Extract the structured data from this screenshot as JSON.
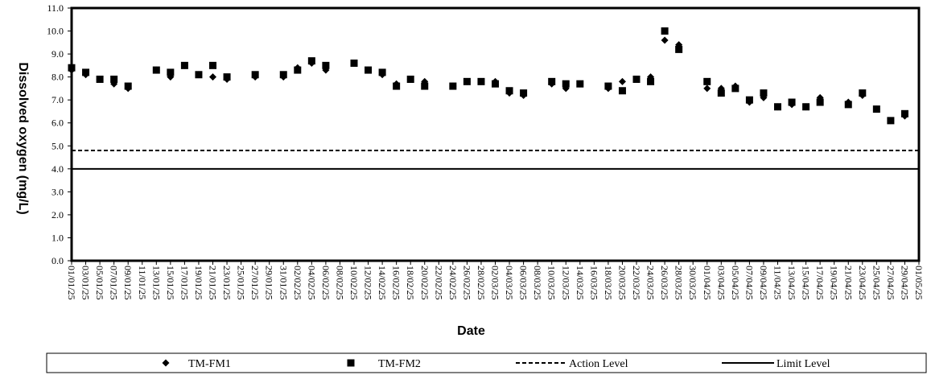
{
  "chart_data": {
    "type": "scatter",
    "xlabel": "Date",
    "ylabel": "Dissolved oxygen (mg/L)",
    "ylim": [
      0,
      11
    ],
    "yticks": [
      "0.0",
      "1.0",
      "2.0",
      "3.0",
      "4.0",
      "5.0",
      "6.0",
      "7.0",
      "8.0",
      "9.0",
      "10.0",
      "11.0"
    ],
    "xlim": [
      "2025-01-01",
      "2025-05-01"
    ],
    "xticks": [
      "01/01/25",
      "03/01/25",
      "05/01/25",
      "07/01/25",
      "09/01/25",
      "11/01/25",
      "13/01/25",
      "15/01/25",
      "17/01/25",
      "19/01/25",
      "21/01/25",
      "23/01/25",
      "25/01/25",
      "27/01/25",
      "29/01/25",
      "31/01/25",
      "02/02/25",
      "04/02/25",
      "06/02/25",
      "08/02/25",
      "10/02/25",
      "12/02/25",
      "14/02/25",
      "16/02/25",
      "18/02/25",
      "20/02/25",
      "22/02/25",
      "24/02/25",
      "26/02/25",
      "28/02/25",
      "02/03/25",
      "04/03/25",
      "06/03/25",
      "08/03/25",
      "10/03/25",
      "12/03/25",
      "14/03/25",
      "16/03/25",
      "18/03/25",
      "20/03/25",
      "22/03/25",
      "24/03/25",
      "26/03/25",
      "28/03/25",
      "30/03/25",
      "01/04/25",
      "03/04/25",
      "05/04/25",
      "07/04/25",
      "09/04/25",
      "11/04/25",
      "13/04/25",
      "15/04/25",
      "17/04/25",
      "19/04/25",
      "21/04/25",
      "23/04/25",
      "25/04/25",
      "27/04/25",
      "29/04/25",
      "01/05/25"
    ],
    "legend_position": "bottom",
    "series": [
      {
        "name": "TM-FM1",
        "marker": "diamond",
        "color": "#000000",
        "points": [
          [
            "2025-01-01",
            8.3
          ],
          [
            "2025-01-03",
            8.1
          ],
          [
            "2025-01-05",
            7.9
          ],
          [
            "2025-01-07",
            7.7
          ],
          [
            "2025-01-09",
            7.5
          ],
          [
            "2025-01-13",
            8.3
          ],
          [
            "2025-01-15",
            8.0
          ],
          [
            "2025-01-17",
            8.5
          ],
          [
            "2025-01-19",
            8.1
          ],
          [
            "2025-01-21",
            8.0
          ],
          [
            "2025-01-23",
            7.9
          ],
          [
            "2025-01-27",
            8.0
          ],
          [
            "2025-01-31",
            8.0
          ],
          [
            "2025-02-02",
            8.4
          ],
          [
            "2025-02-04",
            8.6
          ],
          [
            "2025-02-06",
            8.3
          ],
          [
            "2025-02-10",
            8.6
          ],
          [
            "2025-02-12",
            8.3
          ],
          [
            "2025-02-14",
            8.1
          ],
          [
            "2025-02-16",
            7.7
          ],
          [
            "2025-02-18",
            7.9
          ],
          [
            "2025-02-20",
            7.8
          ],
          [
            "2025-02-24",
            7.6
          ],
          [
            "2025-02-26",
            7.8
          ],
          [
            "2025-02-28",
            7.8
          ],
          [
            "2025-03-02",
            7.8
          ],
          [
            "2025-03-04",
            7.3
          ],
          [
            "2025-03-06",
            7.2
          ],
          [
            "2025-03-10",
            7.7
          ],
          [
            "2025-03-12",
            7.5
          ],
          [
            "2025-03-14",
            7.7
          ],
          [
            "2025-03-18",
            7.5
          ],
          [
            "2025-03-20",
            7.8
          ],
          [
            "2025-03-22",
            7.9
          ],
          [
            "2025-03-24",
            8.0
          ],
          [
            "2025-03-26",
            9.6
          ],
          [
            "2025-03-28",
            9.4
          ],
          [
            "2025-04-01",
            7.5
          ],
          [
            "2025-04-03",
            7.5
          ],
          [
            "2025-04-05",
            7.6
          ],
          [
            "2025-04-07",
            6.9
          ],
          [
            "2025-04-09",
            7.1
          ],
          [
            "2025-04-11",
            6.7
          ],
          [
            "2025-04-13",
            6.8
          ],
          [
            "2025-04-15",
            6.7
          ],
          [
            "2025-04-17",
            7.1
          ],
          [
            "2025-04-21",
            6.9
          ],
          [
            "2025-04-23",
            7.2
          ],
          [
            "2025-04-25",
            6.6
          ],
          [
            "2025-04-27",
            6.1
          ],
          [
            "2025-04-29",
            6.3
          ]
        ]
      },
      {
        "name": "TM-FM2",
        "marker": "square",
        "color": "#000000",
        "points": [
          [
            "2025-01-01",
            8.4
          ],
          [
            "2025-01-03",
            8.2
          ],
          [
            "2025-01-05",
            7.9
          ],
          [
            "2025-01-07",
            7.9
          ],
          [
            "2025-01-09",
            7.6
          ],
          [
            "2025-01-13",
            8.3
          ],
          [
            "2025-01-15",
            8.2
          ],
          [
            "2025-01-17",
            8.5
          ],
          [
            "2025-01-19",
            8.1
          ],
          [
            "2025-01-21",
            8.5
          ],
          [
            "2025-01-23",
            8.0
          ],
          [
            "2025-01-27",
            8.1
          ],
          [
            "2025-01-31",
            8.1
          ],
          [
            "2025-02-02",
            8.3
          ],
          [
            "2025-02-04",
            8.7
          ],
          [
            "2025-02-06",
            8.5
          ],
          [
            "2025-02-10",
            8.6
          ],
          [
            "2025-02-12",
            8.3
          ],
          [
            "2025-02-14",
            8.2
          ],
          [
            "2025-02-16",
            7.6
          ],
          [
            "2025-02-18",
            7.9
          ],
          [
            "2025-02-20",
            7.6
          ],
          [
            "2025-02-24",
            7.6
          ],
          [
            "2025-02-26",
            7.8
          ],
          [
            "2025-02-28",
            7.8
          ],
          [
            "2025-03-02",
            7.7
          ],
          [
            "2025-03-04",
            7.4
          ],
          [
            "2025-03-06",
            7.3
          ],
          [
            "2025-03-10",
            7.8
          ],
          [
            "2025-03-12",
            7.7
          ],
          [
            "2025-03-14",
            7.7
          ],
          [
            "2025-03-18",
            7.6
          ],
          [
            "2025-03-20",
            7.4
          ],
          [
            "2025-03-22",
            7.9
          ],
          [
            "2025-03-24",
            7.8
          ],
          [
            "2025-03-26",
            10.0
          ],
          [
            "2025-03-28",
            9.2
          ],
          [
            "2025-04-01",
            7.8
          ],
          [
            "2025-04-03",
            7.3
          ],
          [
            "2025-04-05",
            7.5
          ],
          [
            "2025-04-07",
            7.0
          ],
          [
            "2025-04-09",
            7.3
          ],
          [
            "2025-04-11",
            6.7
          ],
          [
            "2025-04-13",
            6.9
          ],
          [
            "2025-04-15",
            6.7
          ],
          [
            "2025-04-17",
            6.9
          ],
          [
            "2025-04-21",
            6.8
          ],
          [
            "2025-04-23",
            7.3
          ],
          [
            "2025-04-25",
            6.6
          ],
          [
            "2025-04-27",
            6.1
          ],
          [
            "2025-04-29",
            6.4
          ]
        ]
      }
    ],
    "reference_lines": [
      {
        "name": "Action Level",
        "value": 4.8,
        "style": "dashed"
      },
      {
        "name": "Limit Level",
        "value": 4.0,
        "style": "solid"
      }
    ]
  }
}
